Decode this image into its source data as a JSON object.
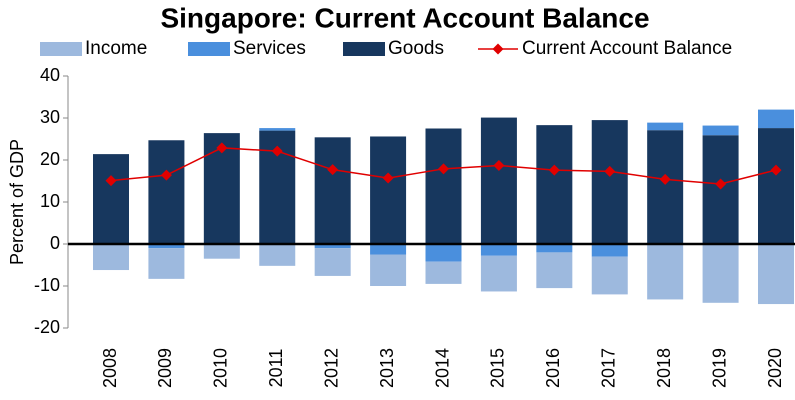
{
  "chart_data": {
    "type": "stacked_bar_line",
    "title": "Singapore: Current Account Balance",
    "y_label": "Percent of GDP",
    "categories": [
      "2008",
      "2009",
      "2010",
      "2011",
      "2012",
      "2013",
      "2014",
      "2015",
      "2016",
      "2017",
      "2018",
      "2019",
      "2020"
    ],
    "series": [
      {
        "name": "Income",
        "color": "#9DB9DE",
        "kind": "bar",
        "values": [
          -6.2,
          -7.3,
          -3.5,
          -5.2,
          -6.6,
          -7.5,
          -5.3,
          -8.5,
          -8.5,
          -9.0,
          -13.2,
          -14.0,
          -14.3
        ]
      },
      {
        "name": "Services",
        "color": "#4A8FDD",
        "kind": "bar",
        "values": [
          0,
          -1.0,
          0,
          0.6,
          -1.0,
          -2.5,
          -4.2,
          -2.8,
          -2.0,
          -3.0,
          1.8,
          2.3,
          4.4
        ]
      },
      {
        "name": "Goods",
        "color": "#17375E",
        "kind": "bar",
        "values": [
          21.4,
          24.7,
          26.4,
          27.0,
          25.4,
          25.6,
          27.5,
          30.1,
          28.3,
          29.5,
          27.1,
          25.9,
          27.6
        ]
      },
      {
        "name": "Current Account Balance",
        "color": "#E00000",
        "kind": "line",
        "values": [
          15.1,
          16.4,
          22.9,
          22.1,
          17.7,
          15.7,
          17.9,
          18.7,
          17.6,
          17.3,
          15.4,
          14.3,
          17.6
        ]
      }
    ],
    "ylim": [
      -20,
      40
    ],
    "yticks": [
      -20,
      -10,
      0,
      10,
      20,
      30,
      40
    ]
  }
}
